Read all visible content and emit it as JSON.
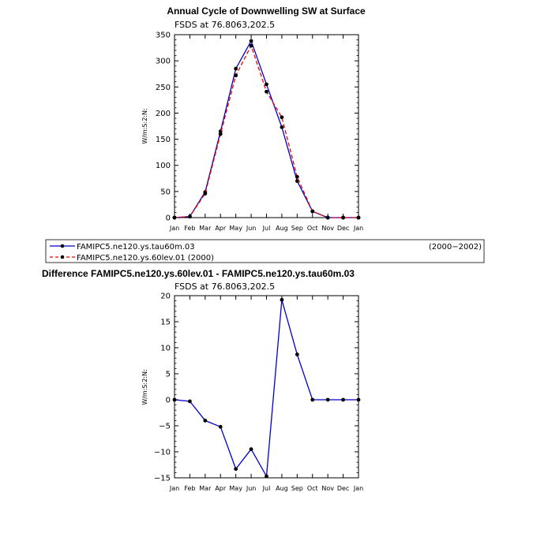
{
  "colors": {
    "series_a": "#0000cc",
    "series_b": "#ee0000",
    "marker": "#000000"
  },
  "chart_data": [
    {
      "type": "line",
      "title": "Annual Cycle of Downwelling SW at Surface",
      "subtitle": "FSDS  at  76.8063,202.5",
      "xlabel": "",
      "ylabel": "W/m:S:2:N:",
      "categories": [
        "Jan",
        "Feb",
        "Mar",
        "Apr",
        "May",
        "Jun",
        "Jul",
        "Aug",
        "Sep",
        "Oct",
        "Nov",
        "Dec",
        "Jan"
      ],
      "ylim": [
        0,
        350
      ],
      "yticks": [
        0,
        50,
        100,
        150,
        200,
        250,
        300,
        350
      ],
      "series": [
        {
          "name": "FAMIPC5.ne120.ys.tau60m.03",
          "style": "solid",
          "color": "#0000cc",
          "values": [
            0,
            2,
            49,
            165,
            285,
            338,
            255,
            173,
            70,
            12,
            0,
            0,
            0
          ]
        },
        {
          "name": "FAMIPC5.ne120.ys.60lev.01",
          "style": "dashed",
          "color": "#ee0000",
          "values": [
            0,
            2,
            46,
            160,
            272,
            329,
            241,
            192,
            78,
            12,
            0,
            0,
            0
          ]
        }
      ]
    },
    {
      "type": "line",
      "title": "Difference FAMIPC5.ne120.ys.60lev.01 - FAMIPC5.ne120.ys.tau60m.03",
      "subtitle": "FSDS  at  76.8063,202.5",
      "xlabel": "",
      "ylabel": "W/m:S:2:N:",
      "categories": [
        "Jan",
        "Feb",
        "Mar",
        "Apr",
        "May",
        "Jun",
        "Jul",
        "Aug",
        "Sep",
        "Oct",
        "Nov",
        "Dec",
        "Jan"
      ],
      "ylim": [
        -15,
        20
      ],
      "yticks": [
        -15,
        -10,
        -5,
        0,
        5,
        10,
        15,
        20
      ],
      "series": [
        {
          "style": "solid",
          "color": "#0000cc",
          "values": [
            0,
            -0.3,
            -4,
            -5.2,
            -13.3,
            -9.5,
            -14.7,
            19.2,
            8.7,
            0,
            0,
            0,
            0
          ]
        }
      ]
    }
  ],
  "legend": {
    "entries": [
      {
        "label": "FAMIPC5.ne120.ys.tau60m.03",
        "period": "(2000−2002)"
      },
      {
        "label": "FAMIPC5.ne120.ys.60lev.01  (2000)"
      }
    ]
  }
}
